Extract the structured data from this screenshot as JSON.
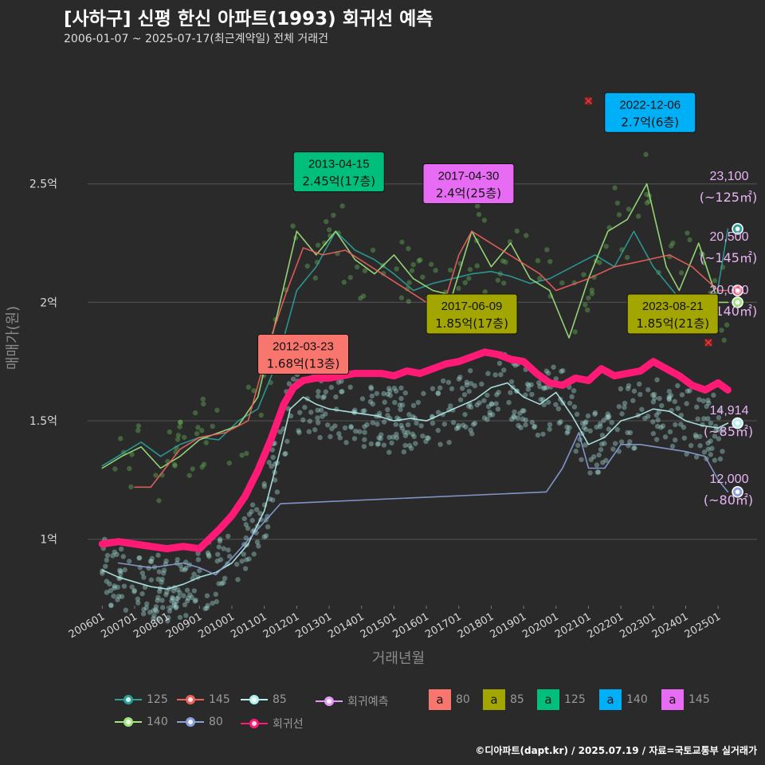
{
  "title": "[사하구] 신평 한신 아파트(1993) 회귀선 예측",
  "subtitle": "2006-01-07 ~ 2025-07-17(최근계약일) 전체 거래건",
  "caption": "©디아파트(dapt.kr) / 2025.07.19 / 자료=국토교통부 실거래가",
  "chart_data": {
    "type": "line",
    "xlabel": "거래년월",
    "ylabel": "매매가(원)",
    "x_ticks": [
      "200601",
      "200701",
      "200801",
      "200901",
      "201001",
      "201101",
      "201201",
      "201301",
      "201401",
      "201501",
      "201601",
      "201701",
      "201801",
      "201901",
      "202001",
      "202101",
      "202201",
      "202301",
      "202401",
      "202501"
    ],
    "y_ticks": [
      {
        "value": 1.0,
        "label": "1억"
      },
      {
        "value": 1.5,
        "label": "1.5억"
      },
      {
        "value": 2.0,
        "label": "2억"
      },
      {
        "value": 2.5,
        "label": "2.5억"
      }
    ],
    "xlim": [
      2005.55,
      2026.2
    ],
    "ylim": [
      0.72,
      2.98
    ],
    "unit": "억",
    "colors": {
      "125": "#2aa198",
      "145": "#f0605a",
      "85": "#b2f0ec",
      "140": "#9ee57b",
      "80": "#8aa0d8",
      "regression": "#ff1a75",
      "forecast": "#e39bf2",
      "box80": "#f8766d",
      "box85": "#a3a500",
      "box125": "#00bf7d",
      "box140": "#00b0f6",
      "box145": "#e76bf3"
    },
    "series": [
      {
        "name": "회귀선",
        "color_key": "regression",
        "x": [
          2006.0,
          2006.5,
          2007.0,
          2007.5,
          2008.0,
          2008.5,
          2009.0,
          2009.3,
          2009.6,
          2010.0,
          2010.4,
          2010.8,
          2011.2,
          2011.6,
          2011.9,
          2012.2,
          2012.6,
          2013.0,
          2013.4,
          2013.8,
          2014.2,
          2014.6,
          2015.0,
          2015.4,
          2015.8,
          2016.2,
          2016.6,
          2017.0,
          2017.4,
          2017.8,
          2018.2,
          2018.6,
          2019.0,
          2019.4,
          2019.8,
          2020.2,
          2020.6,
          2021.0,
          2021.4,
          2021.8,
          2022.2,
          2022.6,
          2023.0,
          2023.4,
          2023.8,
          2024.2,
          2024.6,
          2025.0,
          2025.3
        ],
        "y": [
          0.98,
          0.99,
          0.98,
          0.97,
          0.96,
          0.97,
          0.96,
          1.0,
          1.04,
          1.1,
          1.18,
          1.29,
          1.42,
          1.57,
          1.64,
          1.67,
          1.68,
          1.68,
          1.69,
          1.7,
          1.7,
          1.7,
          1.69,
          1.71,
          1.7,
          1.72,
          1.74,
          1.75,
          1.77,
          1.79,
          1.78,
          1.76,
          1.75,
          1.7,
          1.66,
          1.65,
          1.68,
          1.67,
          1.72,
          1.69,
          1.7,
          1.71,
          1.75,
          1.72,
          1.69,
          1.65,
          1.63,
          1.66,
          1.63
        ]
      },
      {
        "name": "85",
        "color_key": "85",
        "x": [
          2006.0,
          2006.5,
          2007.0,
          2007.5,
          2008.0,
          2008.5,
          2009.0,
          2009.5,
          2010.0,
          2010.5,
          2011.0,
          2011.5,
          2011.8,
          2012.2,
          2012.6,
          2013.0,
          2013.5,
          2014.0,
          2014.5,
          2015.0,
          2015.5,
          2016.0,
          2016.5,
          2017.0,
          2017.5,
          2018.0,
          2018.5,
          2019.0,
          2019.5,
          2020.0,
          2020.5,
          2021.0,
          2021.5,
          2022.0,
          2022.5,
          2023.0,
          2023.5,
          2024.0,
          2024.5,
          2025.0,
          2025.3
        ],
        "y": [
          0.87,
          0.84,
          0.82,
          0.8,
          0.79,
          0.81,
          0.84,
          0.86,
          0.9,
          0.98,
          1.12,
          1.38,
          1.55,
          1.6,
          1.57,
          1.55,
          1.54,
          1.53,
          1.52,
          1.5,
          1.51,
          1.5,
          1.53,
          1.56,
          1.59,
          1.64,
          1.66,
          1.6,
          1.57,
          1.62,
          1.52,
          1.4,
          1.43,
          1.5,
          1.52,
          1.55,
          1.54,
          1.5,
          1.48,
          1.47,
          1.49
        ]
      },
      {
        "name": "125",
        "color_key": "125",
        "x": [
          2006.0,
          2006.6,
          2007.2,
          2007.8,
          2008.4,
          2009.0,
          2009.6,
          2010.2,
          2010.8,
          2011.4,
          2012.0,
          2012.6,
          2013.2,
          2013.8,
          2014.4,
          2015.0,
          2015.6,
          2016.2,
          2016.8,
          2017.4,
          2018.0,
          2018.6,
          2019.2,
          2019.8,
          2021.2,
          2021.8,
          2022.4,
          2023.0,
          2023.6,
          2024.2,
          2024.8,
          2025.3
        ],
        "y": [
          1.31,
          1.36,
          1.41,
          1.35,
          1.4,
          1.43,
          1.42,
          1.5,
          1.55,
          1.75,
          2.05,
          2.15,
          2.3,
          2.22,
          2.18,
          2.12,
          2.05,
          2.08,
          2.1,
          2.12,
          2.13,
          2.11,
          2.08,
          2.1,
          2.2,
          2.15,
          2.3,
          2.15,
          2.05,
          1.95,
          1.9,
          2.31
        ]
      },
      {
        "name": "140",
        "color_key": "140",
        "x": [
          2006.0,
          2006.6,
          2007.2,
          2007.8,
          2008.4,
          2009.0,
          2009.6,
          2010.2,
          2010.8,
          2011.4,
          2012.0,
          2012.6,
          2013.2,
          2013.8,
          2014.4,
          2015.0,
          2015.6,
          2016.2,
          2016.8,
          2017.4,
          2018.0,
          2018.6,
          2019.2,
          2019.8,
          2020.4,
          2021.0,
          2021.6,
          2022.2,
          2022.8,
          2023.4,
          2023.8,
          2024.4,
          2025.0,
          2025.3
        ],
        "y": [
          1.3,
          1.35,
          1.39,
          1.3,
          1.35,
          1.42,
          1.45,
          1.48,
          1.6,
          1.95,
          2.3,
          2.2,
          2.3,
          2.18,
          2.12,
          2.2,
          2.1,
          2.05,
          2.03,
          2.3,
          2.15,
          2.25,
          2.1,
          2.05,
          1.85,
          2.1,
          2.3,
          2.35,
          2.5,
          2.15,
          2.05,
          2.25,
          2.0,
          2.0
        ]
      },
      {
        "name": "145",
        "color_key": "145",
        "x": [
          2007.0,
          2007.5,
          2008.4,
          2009.0,
          2009.8,
          2010.5,
          2011.2,
          2011.7,
          2012.2,
          2012.8,
          2013.5,
          2016.0,
          2016.6,
          2017.0,
          2017.4,
          2019.5,
          2020.0,
          2021.0,
          2021.8,
          2022.5,
          2023.5,
          2024.2,
          2025.0,
          2025.3
        ],
        "y": [
          1.22,
          1.22,
          1.38,
          1.43,
          1.45,
          1.5,
          1.85,
          2.05,
          2.23,
          2.2,
          2.22,
          2.0,
          2.02,
          2.2,
          2.3,
          2.12,
          2.05,
          2.1,
          2.15,
          2.17,
          2.2,
          2.15,
          2.05,
          2.05
        ]
      },
      {
        "name": "80",
        "color_key": "80",
        "x": [
          2006.5,
          2007.5,
          2008.5,
          2009.0,
          2009.5,
          2010.0,
          2011.5,
          2019.7,
          2020.2,
          2020.7,
          2021.0,
          2021.5,
          2022.0,
          2022.6,
          2024.0,
          2024.6,
          2025.0,
          2025.3
        ],
        "y": [
          0.9,
          0.88,
          0.9,
          0.88,
          0.85,
          0.92,
          1.15,
          1.2,
          1.3,
          1.45,
          1.3,
          1.3,
          1.4,
          1.4,
          1.37,
          1.35,
          1.25,
          1.2
        ]
      }
    ],
    "forecast_points": [
      {
        "area": "125",
        "value": 2.31,
        "price_label": "23,100",
        "area_label": "(~125㎡)"
      },
      {
        "area": "145",
        "value": 2.05,
        "price_label": "20,500",
        "area_label": "(~145㎡)"
      },
      {
        "area": "140",
        "value": 2.0,
        "price_label": "20,000",
        "area_label": "(~140㎡)"
      },
      {
        "area": "85",
        "value": 1.49,
        "price_label": "14,914",
        "area_label": "(~85㎡)"
      },
      {
        "area": "80",
        "value": 1.2,
        "price_label": "12,000",
        "area_label": "(~80㎡)"
      }
    ],
    "annotations": [
      {
        "date": "2012-03-23",
        "text": "1.68억(13층)",
        "x": 2012.2,
        "y": 1.68,
        "area": "80",
        "color_key": "box80"
      },
      {
        "date": "2013-04-15",
        "text": "2.45억(17층)",
        "x": 2013.3,
        "y": 2.45,
        "area": "125",
        "color_key": "box125"
      },
      {
        "date": "2017-04-30",
        "text": "2.4억(25층)",
        "x": 2017.3,
        "y": 2.4,
        "area": "145",
        "color_key": "box145"
      },
      {
        "date": "2017-06-09",
        "text": "1.85억(17층)",
        "x": 2017.4,
        "y": 1.85,
        "area": "85",
        "color_key": "box85"
      },
      {
        "date": "2022-12-06",
        "text": "2.7억(6층)",
        "x": 2022.9,
        "y": 2.7,
        "area": "140",
        "color_key": "box140"
      },
      {
        "date": "2023-08-21",
        "text": "1.85억(21층)",
        "x": 2023.6,
        "y": 1.85,
        "area": "85",
        "color_key": "box85"
      }
    ],
    "outliers": [
      {
        "x": 2021.0,
        "y": 2.85
      },
      {
        "x": 2024.7,
        "y": 1.83
      }
    ],
    "legend": {
      "lines": [
        "125",
        "145",
        "85",
        "회귀예측",
        "140",
        "80",
        "회귀선"
      ],
      "boxes": [
        "80",
        "85",
        "125",
        "140",
        "145"
      ],
      "box_glyph": "a"
    }
  }
}
